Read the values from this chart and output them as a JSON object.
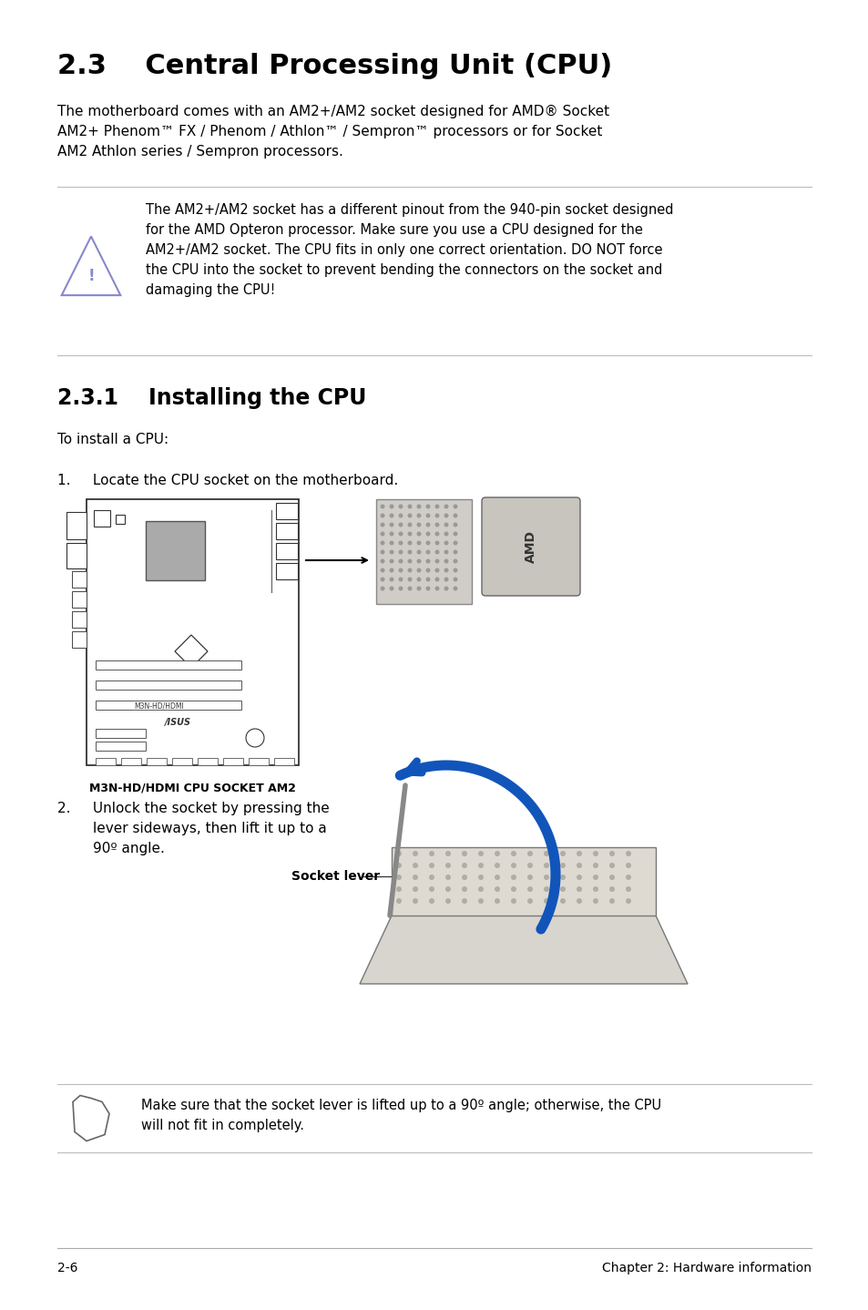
{
  "bg_color": "#ffffff",
  "text_color": "#000000",
  "title": "2.3    Central Processing Unit (CPU)",
  "body_text_1_line1": "The motherboard comes with an AM2+/AM2 socket designed for AMD® Socket",
  "body_text_1_line2": "AM2+ Phenom™ FX / Phenom / Athlon™ / Sempron™ processors or for Socket",
  "body_text_1_line3": "AM2 Athlon series / Sempron processors.",
  "warning_text_line1": "The AM2+/AM2 socket has a different pinout from the 940-pin socket designed",
  "warning_text_line2": "for the AMD Opteron processor. Make sure you use a CPU designed for the",
  "warning_text_line3": "AM2+/AM2 socket. The CPU fits in only one correct orientation. DO NOT force",
  "warning_text_line4": "the CPU into the socket to prevent bending the connectors on the socket and",
  "warning_text_line5": "damaging the CPU!",
  "section_title": "2.3.1    Installing the CPU",
  "section_body": "To install a CPU:",
  "step1_text": "1.     Locate the CPU socket on the motherboard.",
  "mb_label": "M3N-HD/HDMI CPU SOCKET AM2",
  "step2_line1": "2.     Unlock the socket by pressing the",
  "step2_line2": "        lever sideways, then lift it up to a",
  "step2_line3": "        90º angle.",
  "socket_lever_label": "Socket lever",
  "note_line1": "Make sure that the socket lever is lifted up to a 90º angle; otherwise, the CPU",
  "note_line2": "will not fit in completely.",
  "footer_left": "2-6",
  "footer_right": "Chapter 2: Hardware information"
}
